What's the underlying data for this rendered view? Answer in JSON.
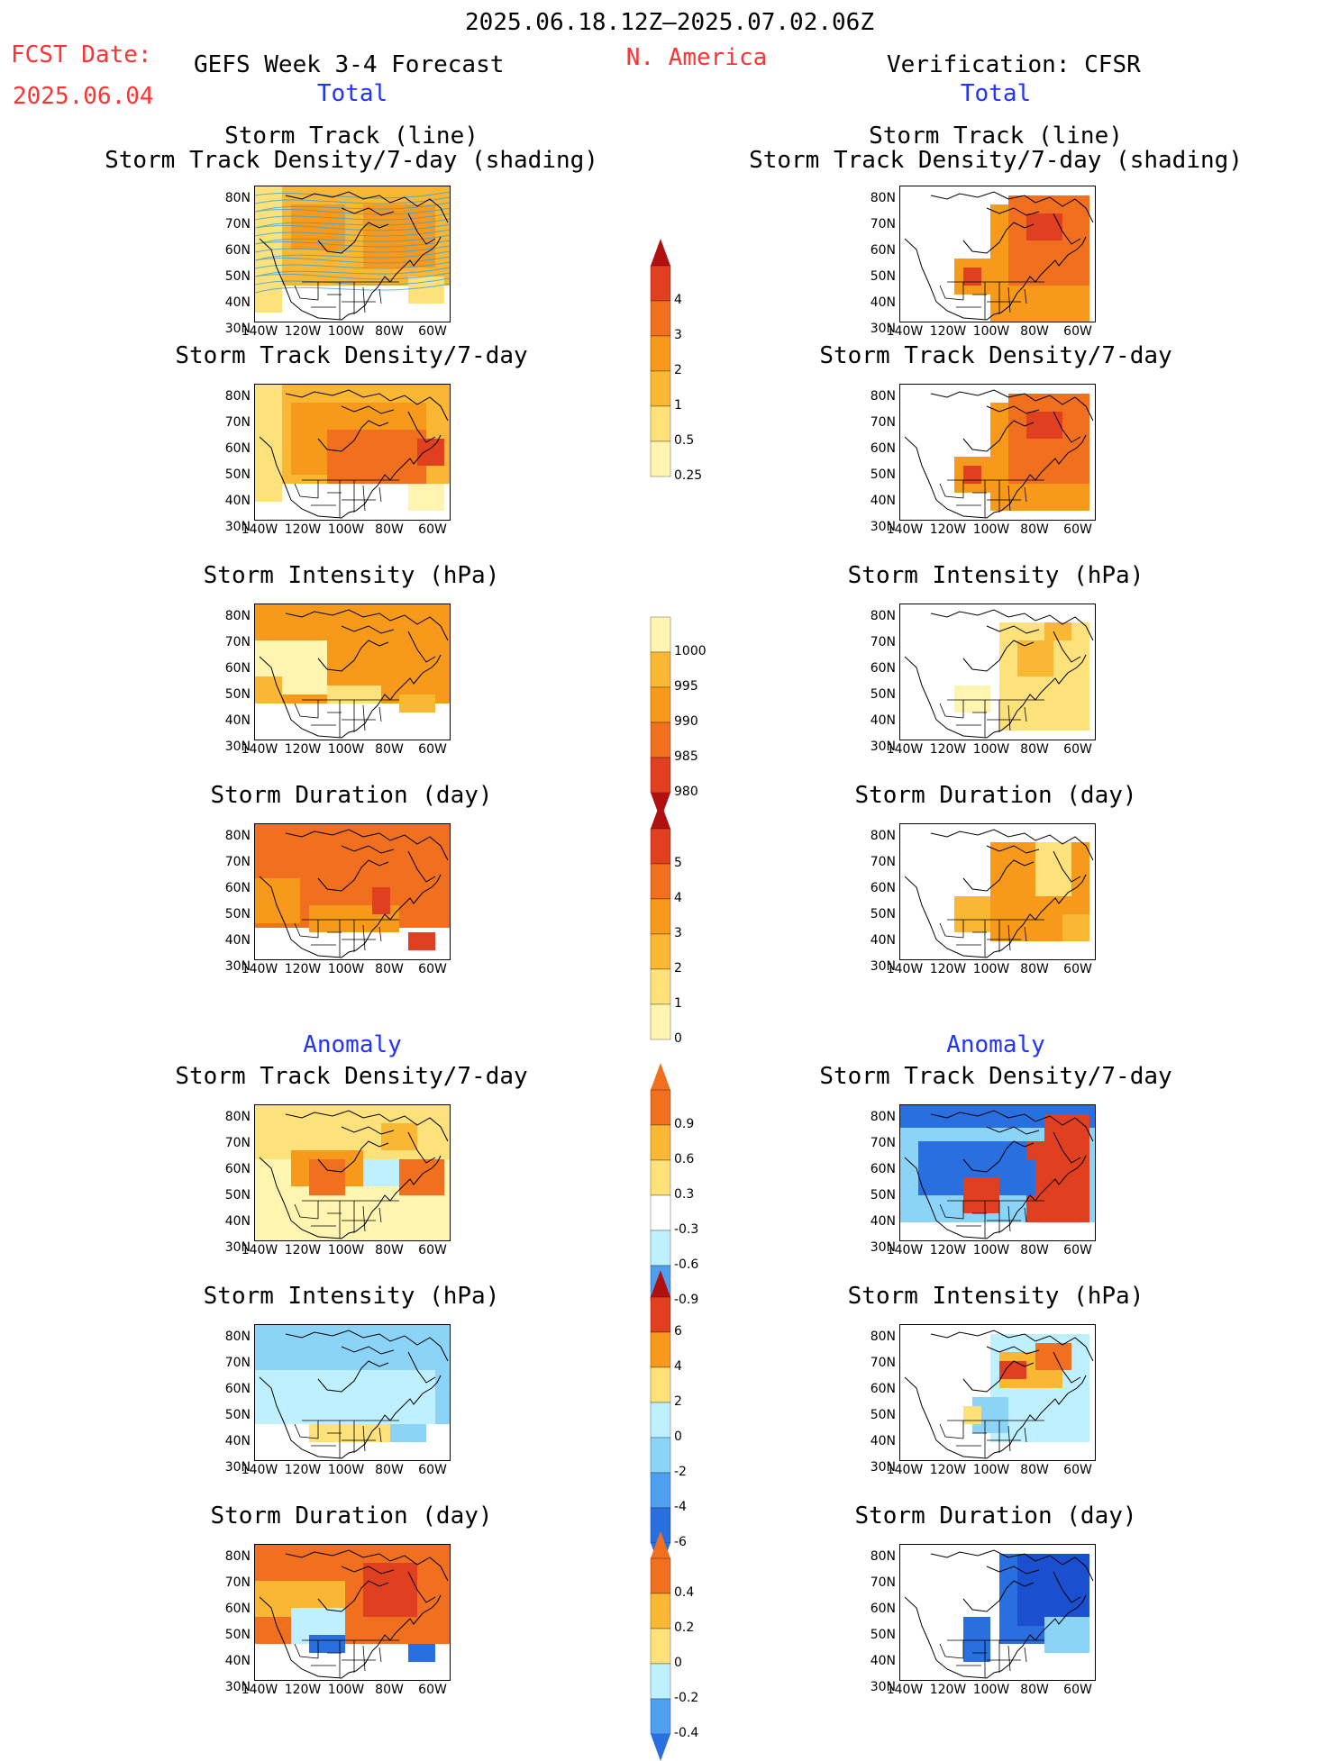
{
  "header": {
    "period": "2025.06.18.12Z—2025.07.02.06Z",
    "fcst_label": "FCST Date:",
    "fcst_date": "2025.06.04",
    "forecast_title": "GEFS Week 3-4 Forecast",
    "region": "N. America",
    "verification": "Verification: CFSR",
    "total_left": "Total",
    "total_right": "Total",
    "anomaly_left": "Anomaly",
    "anomaly_right": "Anomaly"
  },
  "axes": {
    "lat_labels": [
      "80N",
      "70N",
      "60N",
      "50N",
      "40N",
      "30N"
    ],
    "lon_labels": [
      "140W",
      "120W",
      "100W",
      "80W",
      "60W"
    ]
  },
  "panels": {
    "track_title": "Storm Track (line)\nStorm Track Density/7-day (shading)",
    "density_title": "Storm Track Density/7-day",
    "intensity_title": "Storm Intensity (hPa)",
    "duration_title": "Storm Duration (day)"
  },
  "colorbars": {
    "density": [
      "4",
      "3",
      "2",
      "1",
      "0.5",
      "0.25"
    ],
    "intensity": [
      "1000",
      "995",
      "990",
      "985",
      "980"
    ],
    "duration": [
      "5",
      "4",
      "3",
      "2",
      "1",
      "0"
    ],
    "density_anom": [
      "0.9",
      "0.6",
      "0.3",
      "-0.3",
      "-0.6",
      "-0.9"
    ],
    "intensity_anom": [
      "6",
      "4",
      "2",
      "0",
      "-2",
      "-4",
      "-6"
    ],
    "duration_anom": [
      "0.4",
      "0.2",
      "0",
      "-0.2",
      "-0.4"
    ]
  },
  "colors": {
    "c1": "#fff5b0",
    "c2": "#fde17a",
    "c3": "#f9b734",
    "c4": "#f79a1b",
    "c5": "#f07020",
    "c6": "#e04020",
    "c7": "#b01010",
    "b1": "#bff0ff",
    "b2": "#8cd4f7",
    "b3": "#4f9ff0",
    "b4": "#2a6fe0",
    "b5": "#1a4fd0"
  }
}
